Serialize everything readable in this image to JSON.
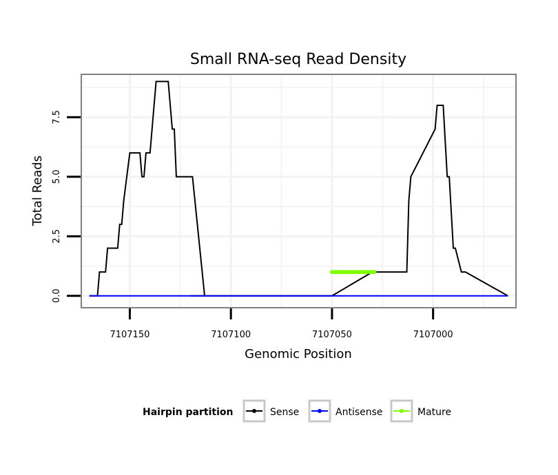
{
  "chart_data": {
    "type": "line",
    "title": "Small RNA-seq Read Density",
    "xlabel": "Genomic Position",
    "ylabel": "Total Reads",
    "xlim": [
      7107174,
      7106959
    ],
    "x_reversed": true,
    "ylim": [
      -0.5,
      9.3
    ],
    "x_ticks": [
      7107150,
      7107100,
      7107050,
      7107000
    ],
    "x_tick_labels": [
      "7107150",
      "7107100",
      "7107050",
      "7107000"
    ],
    "y_ticks": [
      0,
      2.5,
      5,
      7.5
    ],
    "y_tick_labels": [
      "0.0",
      "2.5",
      "5.0",
      "7.5"
    ],
    "grid": true,
    "legend": {
      "title": "Hairpin partition",
      "placement": "bottom",
      "entries": [
        "Sense",
        "Antisense",
        "Mature"
      ]
    },
    "colors": {
      "Sense": "#000000",
      "Antisense": "#0000ff",
      "Mature": "#7fff00"
    },
    "series": [
      {
        "name": "Sense",
        "x": [
          7107170,
          7107166,
          7107165,
          7107162,
          7107161,
          7107156,
          7107155,
          7107154,
          7107153,
          7107150,
          7107145,
          7107144,
          7107143,
          7107142,
          7107140,
          7107139,
          7107137,
          7107136,
          7107134,
          7107131,
          7107130,
          7107129,
          7107128,
          7107127,
          7107122,
          7107120,
          7107119,
          7107113,
          7107120,
          7107050,
          7107030,
          7107013,
          7107012,
          7107011,
          7106999,
          7106998,
          7106997,
          7106995,
          7106993,
          7106992,
          7106990,
          7106989,
          7106986,
          7106984,
          7106963
        ],
        "y": [
          0,
          0,
          1,
          1,
          2,
          2,
          3,
          3,
          4,
          6,
          6,
          5,
          5,
          6,
          6,
          7,
          9,
          9,
          9,
          9,
          8,
          7,
          7,
          5,
          5,
          5,
          5,
          0,
          0,
          0,
          1,
          1,
          4,
          5,
          7,
          8,
          8,
          8,
          5,
          5,
          2,
          2,
          1,
          1,
          0
        ]
      },
      {
        "name": "Antisense",
        "x": [
          7107170,
          7106963
        ],
        "y": [
          0,
          0
        ]
      },
      {
        "name": "Mature",
        "x": [
          7107050,
          7107029
        ],
        "y": [
          1,
          1
        ]
      }
    ]
  }
}
